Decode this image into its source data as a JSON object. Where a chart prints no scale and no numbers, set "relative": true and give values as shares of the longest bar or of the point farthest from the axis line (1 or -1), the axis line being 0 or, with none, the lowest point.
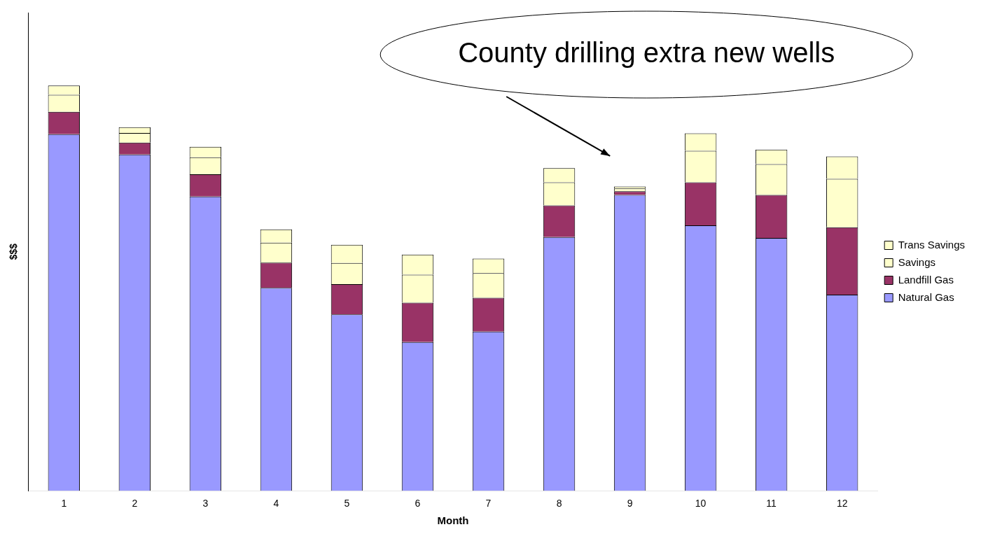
{
  "chart_data": {
    "type": "bar",
    "stacked": true,
    "relative": true,
    "xlabel": "Month",
    "ylabel": "$$$",
    "legend": "right",
    "categories": [
      "1",
      "2",
      "3",
      "4",
      "5",
      "6",
      "7",
      "8",
      "9",
      "10",
      "11",
      "12"
    ],
    "series": [
      {
        "name": "Natural Gas",
        "color": "#9999ff",
        "values": [
          0.88,
          0.83,
          0.726,
          0.501,
          0.435,
          0.367,
          0.393,
          0.626,
          0.73,
          0.655,
          0.624,
          0.484
        ]
      },
      {
        "name": "Landfill Gas",
        "color": "#993366",
        "values": [
          0.055,
          0.029,
          0.055,
          0.062,
          0.075,
          0.097,
          0.083,
          0.078,
          0.009,
          0.106,
          0.106,
          0.166
        ]
      },
      {
        "name": "Savings",
        "color": "#ffffcc",
        "values": [
          0.042,
          0.024,
          0.042,
          0.049,
          0.052,
          0.069,
          0.061,
          0.057,
          0.007,
          0.078,
          0.076,
          0.12
        ]
      },
      {
        "name": "Trans Savings",
        "color": "#ffffcc",
        "values": [
          0.023,
          0.014,
          0.026,
          0.033,
          0.045,
          0.05,
          0.036,
          0.035,
          0.005,
          0.043,
          0.036,
          0.055
        ]
      }
    ],
    "annotations": [
      "County drilling extra new wells"
    ]
  }
}
